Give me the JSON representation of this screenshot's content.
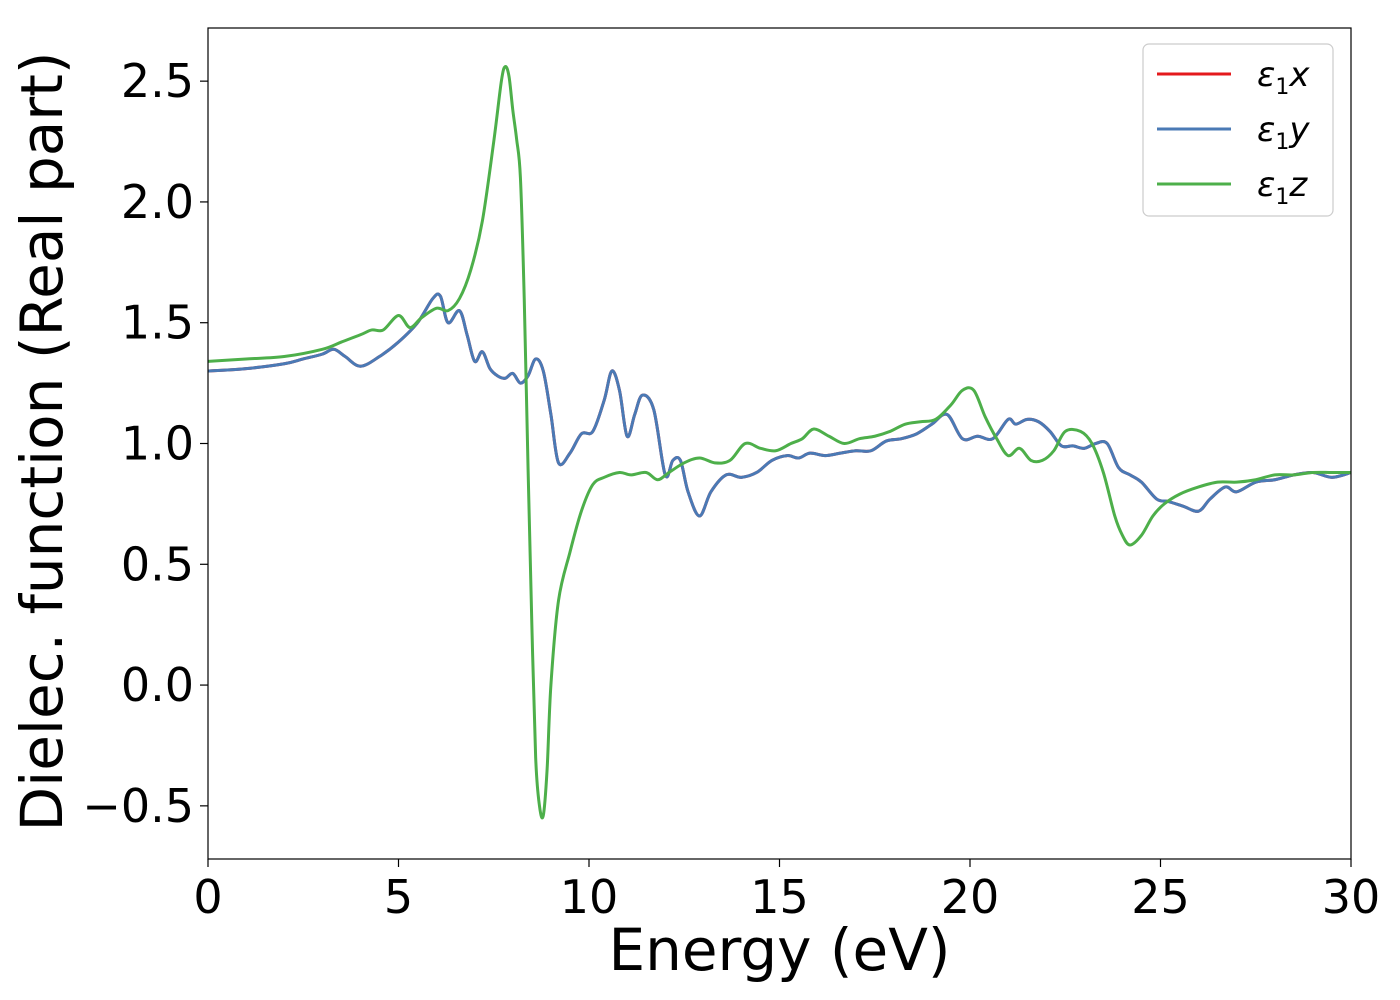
{
  "chart_data": {
    "type": "line",
    "title": "",
    "xlabel": "Energy (eV)",
    "ylabel": "Dielec. function (Real part)",
    "xlim": [
      0,
      30
    ],
    "ylim": [
      -0.72,
      2.72
    ],
    "xticks": [
      0,
      5,
      10,
      15,
      20,
      25,
      30
    ],
    "yticks": [
      -0.5,
      0.0,
      0.5,
      1.0,
      1.5,
      2.0,
      2.5
    ],
    "xtick_labels": [
      "0",
      "5",
      "10",
      "15",
      "20",
      "25",
      "30"
    ],
    "ytick_labels": [
      "−0.5",
      "0.0",
      "0.5",
      "1.0",
      "1.5",
      "2.0",
      "2.5"
    ],
    "grid": false,
    "legend_position": "top-right",
    "series": [
      {
        "name": "ε₁x",
        "legend_main": "ε",
        "legend_sub": "1",
        "legend_suffix": "x",
        "color": "#e41a1c",
        "x": [
          0,
          1,
          2,
          2.5,
          3,
          3.3,
          3.6,
          4.0,
          4.5,
          5.0,
          5.5,
          5.9,
          6.1,
          6.3,
          6.6,
          6.8,
          7.0,
          7.2,
          7.4,
          7.6,
          7.8,
          8.0,
          8.2,
          8.4,
          8.6,
          8.8,
          9.0,
          9.2,
          9.5,
          9.8,
          10.1,
          10.4,
          10.6,
          10.8,
          11.0,
          11.2,
          11.4,
          11.7,
          12.0,
          12.2,
          12.4,
          12.6,
          12.9,
          13.2,
          13.6,
          14.0,
          14.4,
          14.8,
          15.2,
          15.5,
          15.8,
          16.2,
          16.6,
          17.0,
          17.4,
          17.8,
          18.2,
          18.6,
          19.0,
          19.4,
          19.8,
          20.2,
          20.6,
          21.0,
          21.2,
          21.5,
          21.8,
          22.1,
          22.4,
          22.7,
          23.0,
          23.3,
          23.6,
          23.9,
          24.2,
          24.5,
          24.9,
          25.2,
          25.6,
          26.0,
          26.3,
          26.7,
          27.0,
          27.5,
          28.0,
          28.5,
          29.0,
          29.5,
          30.0
        ],
        "y": [
          1.3,
          1.31,
          1.33,
          1.35,
          1.37,
          1.39,
          1.36,
          1.32,
          1.36,
          1.42,
          1.5,
          1.6,
          1.61,
          1.5,
          1.55,
          1.45,
          1.34,
          1.38,
          1.31,
          1.28,
          1.27,
          1.29,
          1.25,
          1.28,
          1.35,
          1.3,
          1.12,
          0.92,
          0.96,
          1.04,
          1.05,
          1.18,
          1.3,
          1.22,
          1.03,
          1.12,
          1.2,
          1.14,
          0.87,
          0.93,
          0.93,
          0.8,
          0.7,
          0.8,
          0.87,
          0.86,
          0.88,
          0.93,
          0.95,
          0.94,
          0.96,
          0.95,
          0.96,
          0.97,
          0.97,
          1.01,
          1.02,
          1.04,
          1.08,
          1.12,
          1.02,
          1.03,
          1.02,
          1.1,
          1.08,
          1.1,
          1.09,
          1.05,
          0.99,
          0.99,
          0.98,
          1.0,
          1.0,
          0.9,
          0.87,
          0.84,
          0.77,
          0.76,
          0.74,
          0.72,
          0.77,
          0.82,
          0.8,
          0.84,
          0.85,
          0.87,
          0.88,
          0.86,
          0.88
        ]
      },
      {
        "name": "ε₁y",
        "legend_main": "ε",
        "legend_sub": "1",
        "legend_suffix": "y",
        "color": "#4a7ab5",
        "x": [
          0,
          1,
          2,
          2.5,
          3,
          3.3,
          3.6,
          4.0,
          4.5,
          5.0,
          5.5,
          5.9,
          6.1,
          6.3,
          6.6,
          6.8,
          7.0,
          7.2,
          7.4,
          7.6,
          7.8,
          8.0,
          8.2,
          8.4,
          8.6,
          8.8,
          9.0,
          9.2,
          9.5,
          9.8,
          10.1,
          10.4,
          10.6,
          10.8,
          11.0,
          11.2,
          11.4,
          11.7,
          12.0,
          12.2,
          12.4,
          12.6,
          12.9,
          13.2,
          13.6,
          14.0,
          14.4,
          14.8,
          15.2,
          15.5,
          15.8,
          16.2,
          16.6,
          17.0,
          17.4,
          17.8,
          18.2,
          18.6,
          19.0,
          19.4,
          19.8,
          20.2,
          20.6,
          21.0,
          21.2,
          21.5,
          21.8,
          22.1,
          22.4,
          22.7,
          23.0,
          23.3,
          23.6,
          23.9,
          24.2,
          24.5,
          24.9,
          25.2,
          25.6,
          26.0,
          26.3,
          26.7,
          27.0,
          27.5,
          28.0,
          28.5,
          29.0,
          29.5,
          30.0
        ],
        "y": [
          1.3,
          1.31,
          1.33,
          1.35,
          1.37,
          1.39,
          1.36,
          1.32,
          1.36,
          1.42,
          1.5,
          1.6,
          1.61,
          1.5,
          1.55,
          1.45,
          1.34,
          1.38,
          1.31,
          1.28,
          1.27,
          1.29,
          1.25,
          1.28,
          1.35,
          1.3,
          1.12,
          0.92,
          0.96,
          1.04,
          1.05,
          1.18,
          1.3,
          1.22,
          1.03,
          1.12,
          1.2,
          1.14,
          0.87,
          0.93,
          0.93,
          0.8,
          0.7,
          0.8,
          0.87,
          0.86,
          0.88,
          0.93,
          0.95,
          0.94,
          0.96,
          0.95,
          0.96,
          0.97,
          0.97,
          1.01,
          1.02,
          1.04,
          1.08,
          1.12,
          1.02,
          1.03,
          1.02,
          1.1,
          1.08,
          1.1,
          1.09,
          1.05,
          0.99,
          0.99,
          0.98,
          1.0,
          1.0,
          0.9,
          0.87,
          0.84,
          0.77,
          0.76,
          0.74,
          0.72,
          0.77,
          0.82,
          0.8,
          0.84,
          0.85,
          0.87,
          0.88,
          0.86,
          0.88
        ]
      },
      {
        "name": "ε₁z",
        "legend_main": "ε",
        "legend_sub": "1",
        "legend_suffix": "z",
        "color": "#4daf4a",
        "x": [
          0,
          1,
          2,
          3,
          3.5,
          4.0,
          4.3,
          4.6,
          5.0,
          5.3,
          5.6,
          6.0,
          6.3,
          6.6,
          6.9,
          7.2,
          7.5,
          7.7,
          7.8,
          7.9,
          8.0,
          8.1,
          8.2,
          8.3,
          8.4,
          8.5,
          8.6,
          8.7,
          8.8,
          8.9,
          9.0,
          9.2,
          9.5,
          9.8,
          10.1,
          10.4,
          10.8,
          11.1,
          11.5,
          11.8,
          12.1,
          12.5,
          12.9,
          13.3,
          13.7,
          14.1,
          14.5,
          14.9,
          15.3,
          15.6,
          15.9,
          16.3,
          16.7,
          17.1,
          17.5,
          17.9,
          18.3,
          18.7,
          19.1,
          19.5,
          19.8,
          20.1,
          20.4,
          20.7,
          21.0,
          21.3,
          21.6,
          21.9,
          22.2,
          22.5,
          22.9,
          23.2,
          23.5,
          23.8,
          24.0,
          24.2,
          24.5,
          24.8,
          25.1,
          25.5,
          26.0,
          26.5,
          27.0,
          27.5,
          28.0,
          28.5,
          29.0,
          29.5,
          30.0
        ],
        "y": [
          1.34,
          1.35,
          1.36,
          1.39,
          1.42,
          1.45,
          1.47,
          1.47,
          1.53,
          1.48,
          1.52,
          1.56,
          1.55,
          1.6,
          1.72,
          1.92,
          2.25,
          2.5,
          2.56,
          2.52,
          2.38,
          2.26,
          2.1,
          1.6,
          0.9,
          0.25,
          -0.3,
          -0.5,
          -0.54,
          -0.35,
          0.0,
          0.35,
          0.55,
          0.72,
          0.83,
          0.86,
          0.88,
          0.87,
          0.88,
          0.85,
          0.88,
          0.92,
          0.94,
          0.92,
          0.93,
          1.0,
          0.98,
          0.97,
          1.0,
          1.02,
          1.06,
          1.03,
          1.0,
          1.02,
          1.03,
          1.05,
          1.08,
          1.09,
          1.1,
          1.16,
          1.22,
          1.22,
          1.11,
          1.02,
          0.95,
          0.98,
          0.93,
          0.93,
          0.97,
          1.05,
          1.05,
          1.0,
          0.88,
          0.7,
          0.62,
          0.58,
          0.62,
          0.7,
          0.75,
          0.79,
          0.82,
          0.84,
          0.84,
          0.85,
          0.87,
          0.87,
          0.88,
          0.88,
          0.88
        ]
      }
    ]
  }
}
